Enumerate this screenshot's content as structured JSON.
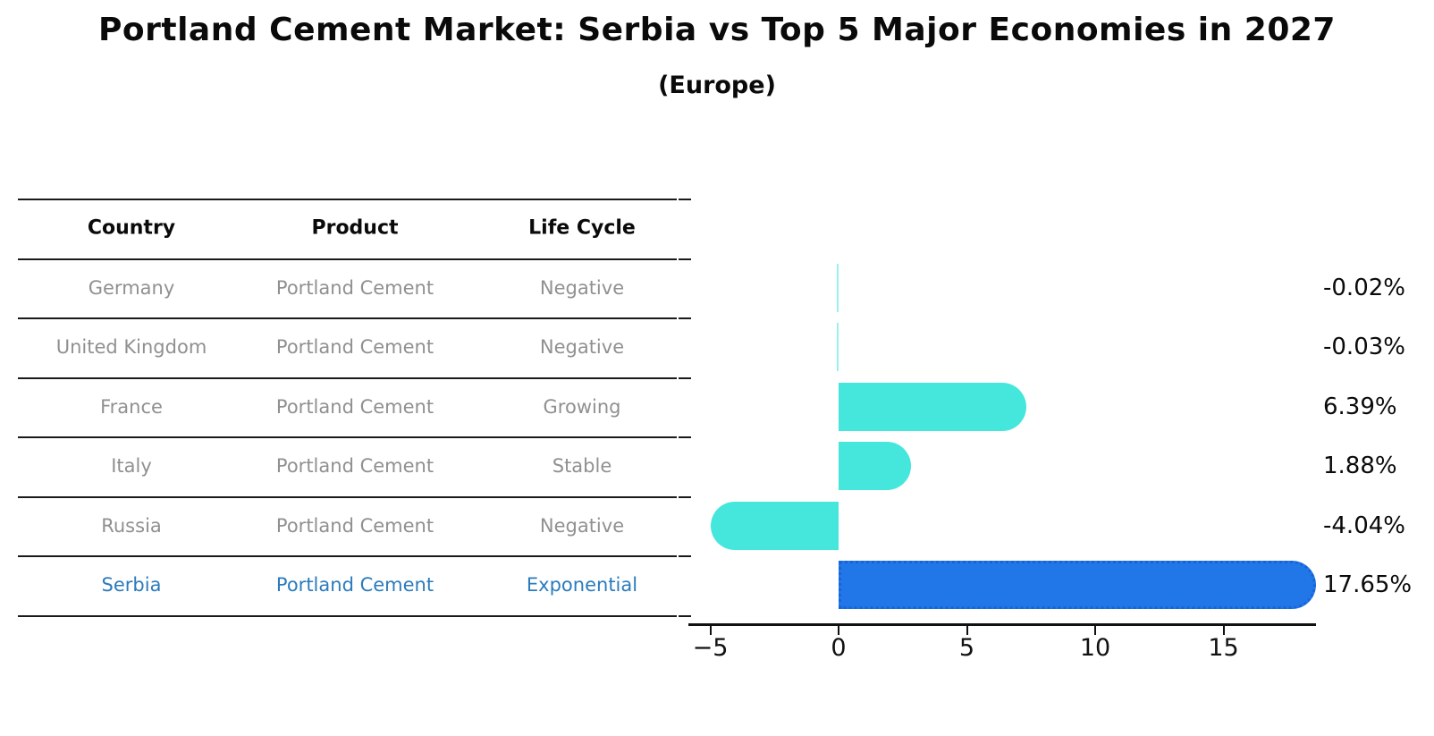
{
  "title": "Portland Cement Market: Serbia vs Top 5 Major Economies in 2027",
  "subtitle": "(Europe)",
  "table": {
    "headers": [
      "Country",
      "Product",
      "Life Cycle"
    ],
    "rows": [
      {
        "country": "Germany",
        "product": "Portland Cement",
        "life_cycle": "Negative",
        "highlight": false
      },
      {
        "country": "United Kingdom",
        "product": "Portland Cement",
        "life_cycle": "Negative",
        "highlight": false
      },
      {
        "country": "France",
        "product": "Portland Cement",
        "life_cycle": "Growing",
        "highlight": false
      },
      {
        "country": "Italy",
        "product": "Portland Cement",
        "life_cycle": "Stable",
        "highlight": false
      },
      {
        "country": "Russia",
        "product": "Portland Cement",
        "life_cycle": "Negative",
        "highlight": false
      },
      {
        "country": "Serbia",
        "product": "Portland Cement",
        "life_cycle": "Exponential",
        "highlight": true
      }
    ]
  },
  "chart_data": {
    "type": "bar",
    "orientation": "horizontal",
    "categories": [
      "Germany",
      "United Kingdom",
      "France",
      "Italy",
      "Russia",
      "Serbia"
    ],
    "values": [
      -0.02,
      -0.03,
      6.39,
      1.88,
      -4.04,
      17.65
    ],
    "value_labels": [
      "-0.02%",
      "-0.03%",
      "6.39%",
      "1.88%",
      "-4.04%",
      "17.65%"
    ],
    "highlight_index": 5,
    "x_ticks": [
      -5,
      0,
      5,
      10,
      15
    ],
    "x_tick_labels": [
      "−5",
      "0",
      "5",
      "10",
      "15"
    ],
    "xlim": [
      -5.8,
      18.4
    ],
    "grid": false,
    "legend": "none",
    "bar_color": "#45e6dc",
    "highlight_color": "#2176e8",
    "highlight_border_color": "#1565d8",
    "xlabel": "",
    "ylabel": ""
  },
  "colors": {
    "text": "#0a0a0a",
    "muted_text": "#909090",
    "highlight_text": "#2b7bbd",
    "line": "#1a1a1a"
  }
}
